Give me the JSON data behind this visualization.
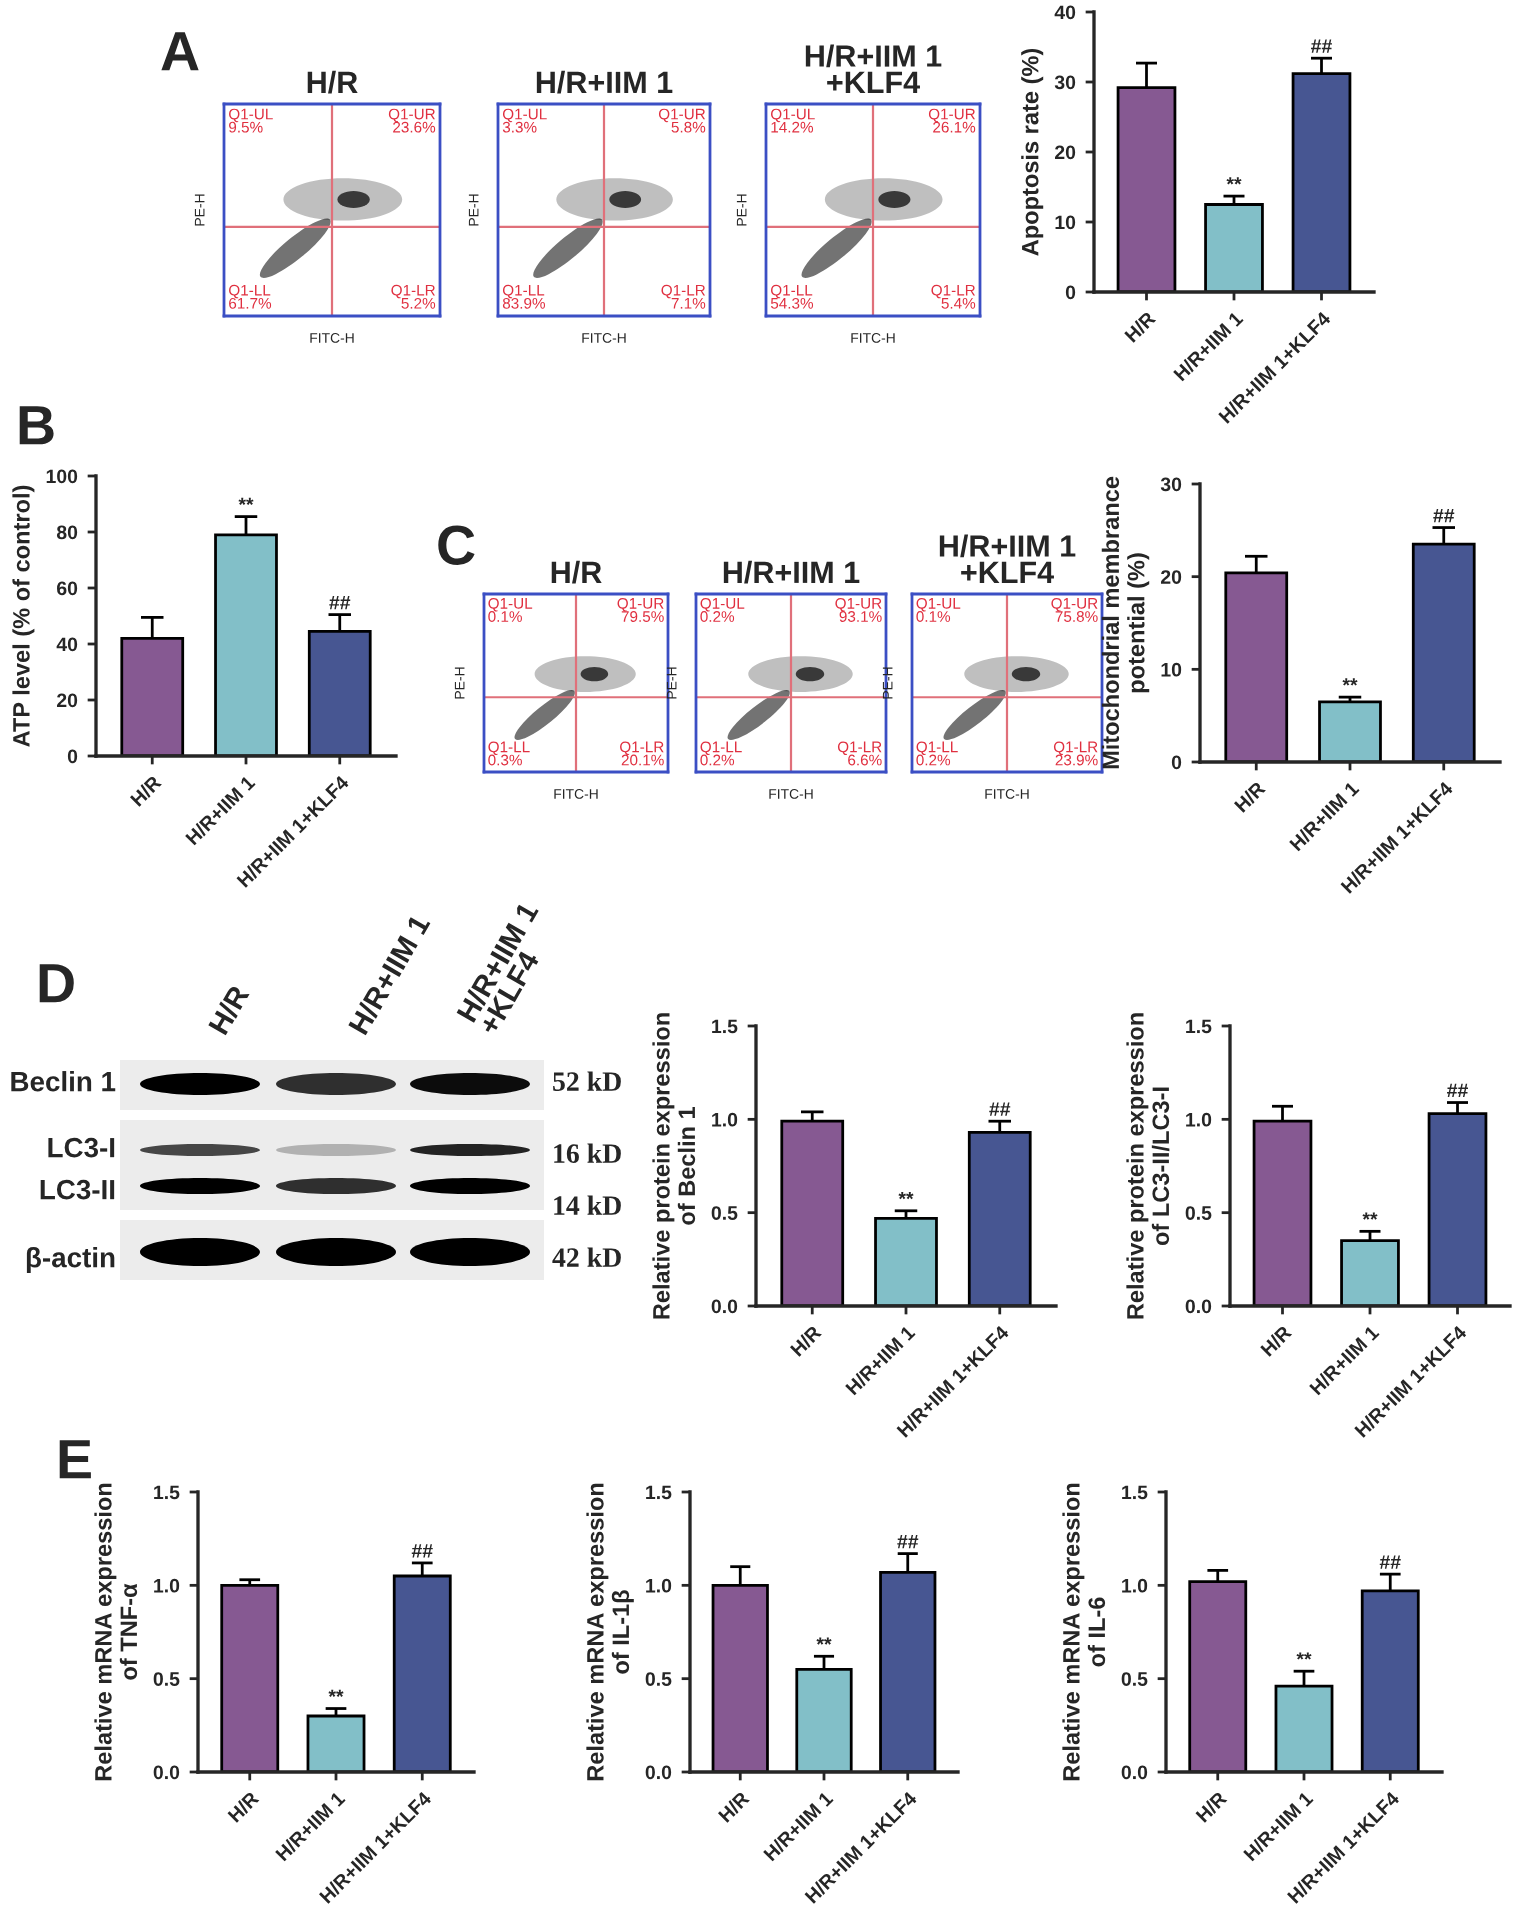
{
  "chart_data": [
    {
      "type": "other",
      "title": "H/R",
      "xlabel": "FITC-H",
      "ylabel": "PE-H",
      "annotations": [
        "A",
        "Q1-UL\n9.5%",
        "Q1-UR\n23.6%",
        "Q1-LL\n61.7%",
        "Q1-LR\n5.2%"
      ]
    },
    {
      "type": "other",
      "title": "H/R+IIM 1",
      "xlabel": "FITC-H",
      "ylabel": "PE-H",
      "annotations": [
        "Q1-UL\n3.3%",
        "Q1-UR\n5.8%",
        "Q1-LL\n83.9%",
        "Q1-LR\n7.1%"
      ]
    },
    {
      "type": "other",
      "title": "H/R+IIM 1\n+KLF4",
      "xlabel": "FITC-H",
      "ylabel": "PE-H",
      "annotations": [
        "Q1-UL\n14.2%",
        "Q1-UR\n26.1%",
        "Q1-LL\n54.3%",
        "Q1-LR\n5.4%"
      ]
    },
    {
      "type": "bar",
      "categories": [
        "H/R",
        "H/R+IIM 1",
        "H/R+IIM 1+KLF4"
      ],
      "values": [
        29.2,
        12.5,
        31.2
      ],
      "errors": [
        [
          29.2,
          32.7
        ],
        [
          12.5,
          13.7
        ],
        [
          31.2,
          33.4
        ]
      ],
      "colors": [
        "#8b4f9c",
        "#77c8d3",
        "#3a4f9f"
      ],
      "ylabel": "Apoptosis rate (%)",
      "ylim": [
        0,
        40
      ],
      "yticks": [
        0,
        10,
        20,
        30,
        40
      ],
      "grid": false,
      "annotations": [
        {
          "text": "**",
          "x": "H/R+IIM 1",
          "y": 12.5
        },
        {
          "text": "##",
          "x": "H/R+IIM 1+KLF4",
          "y": 31.2
        }
      ]
    },
    {
      "type": "bar",
      "categories": [
        "H/R",
        "H/R+IIM 1",
        "H/R+IIM 1+KLF4"
      ],
      "values": [
        42,
        79,
        44.5
      ],
      "errors": [
        [
          42,
          49.5
        ],
        [
          79,
          85.5
        ],
        [
          44.5,
          50.5
        ]
      ],
      "colors": [
        "#8b4f9c",
        "#77c8d3",
        "#3a4f9f"
      ],
      "ylabel": "ATP level (% of control)",
      "ylim": [
        0,
        100
      ],
      "yticks": [
        0,
        20,
        40,
        60,
        80,
        100
      ],
      "grid": false,
      "annotations": [
        "B",
        {
          "text": "**",
          "x": "H/R+IIM 1",
          "y": 79
        },
        {
          "text": "##",
          "x": "H/R+IIM 1+KLF4",
          "y": 44.5
        }
      ]
    },
    {
      "type": "other",
      "title": "H/R",
      "xlabel": "FITC-H",
      "ylabel": "PE-H",
      "annotations": [
        "C",
        "Q1-UL\n0.1%",
        "Q1-UR\n79.5%",
        "Q1-LL\n0.3%",
        "Q1-LR\n20.1%"
      ]
    },
    {
      "type": "other",
      "title": "H/R+IIM 1",
      "xlabel": "FITC-H",
      "ylabel": "PE-H",
      "annotations": [
        "Q1-UL\n0.2%",
        "Q1-UR\n93.1%",
        "Q1-LL\n0.2%",
        "Q1-LR\n6.6%"
      ]
    },
    {
      "type": "other",
      "title": "H/R+IIM 1\n+KLF4",
      "xlabel": "FITC-H",
      "ylabel": "PE-H",
      "annotations": [
        "Q1-UL\n0.1%",
        "Q1-UR\n75.8%",
        "Q1-LL\n0.2%",
        "Q1-LR\n23.9%"
      ]
    },
    {
      "type": "bar",
      "categories": [
        "H/R",
        "H/R+IIM 1",
        "H/R+IIM 1+KLF4"
      ],
      "values": [
        20.4,
        6.5,
        23.5
      ],
      "errors": [
        [
          20.4,
          22.2
        ],
        [
          6.5,
          7.0
        ],
        [
          23.5,
          25.3
        ]
      ],
      "colors": [
        "#8b4f9c",
        "#77c8d3",
        "#3a4f9f"
      ],
      "ylabel": "Mitochondrial membrance\npotential (%)",
      "ylim": [
        0,
        30
      ],
      "yticks": [
        0,
        10,
        20,
        30
      ],
      "grid": false,
      "annotations": [
        {
          "text": "**",
          "x": "H/R+IIM 1",
          "y": 6.5
        },
        {
          "text": "##",
          "x": "H/R+IIM 1+KLF4",
          "y": 23.5
        }
      ]
    },
    {
      "type": "other",
      "annotations": [
        "D",
        "H/R",
        "H/R+IIM 1",
        "H/R+IIM 1\n+KLF4",
        "Beclin 1",
        "LC3-I",
        "LC3-II",
        "β-actin",
        "52 kD",
        "16 kD",
        "14 kD",
        "42 kD"
      ]
    },
    {
      "type": "bar",
      "categories": [
        "H/R",
        "H/R+IIM 1",
        "H/R+IIM 1+KLF4"
      ],
      "values": [
        0.99,
        0.47,
        0.93
      ],
      "errors": [
        [
          0.99,
          1.04
        ],
        [
          0.47,
          0.51
        ],
        [
          0.93,
          0.99
        ]
      ],
      "colors": [
        "#8b4f9c",
        "#77c8d3",
        "#3a4f9f"
      ],
      "ylabel": "Relative protein expression\nof Beclin 1",
      "ylim": [
        0,
        1.5
      ],
      "yticks": [
        {
          "value": 0,
          "label": "0.0"
        },
        {
          "value": 0.5,
          "label": "0.5"
        },
        {
          "value": 1,
          "label": "1.0"
        },
        {
          "value": 1.5,
          "label": "1.5"
        }
      ],
      "grid": false,
      "annotations": [
        {
          "text": "**",
          "x": "H/R+IIM 1",
          "y": 0.47
        },
        {
          "text": "##",
          "x": "H/R+IIM 1+KLF4",
          "y": 0.93
        }
      ]
    },
    {
      "type": "bar",
      "categories": [
        "H/R",
        "H/R+IIM 1",
        "H/R+IIM 1+KLF4"
      ],
      "values": [
        0.99,
        0.35,
        1.03
      ],
      "errors": [
        [
          0.99,
          1.07
        ],
        [
          0.35,
          0.4
        ],
        [
          1.03,
          1.09
        ]
      ],
      "colors": [
        "#8b4f9c",
        "#77c8d3",
        "#3a4f9f"
      ],
      "ylabel": "Relative protein expression\nof LC3-II/LC3-I",
      "ylim": [
        0,
        1.5
      ],
      "yticks": [
        {
          "value": 0,
          "label": "0.0"
        },
        {
          "value": 0.5,
          "label": "0.5"
        },
        {
          "value": 1,
          "label": "1.0"
        },
        {
          "value": 1.5,
          "label": "1.5"
        }
      ],
      "grid": false,
      "annotations": [
        {
          "text": "**",
          "x": "H/R+IIM 1",
          "y": 0.35
        },
        {
          "text": "##",
          "x": "H/R+IIM 1+KLF4",
          "y": 1.03
        }
      ]
    },
    {
      "type": "bar",
      "categories": [
        "H/R",
        "H/R+IIM 1",
        "H/R+IIM 1+KLF4"
      ],
      "values": [
        1.0,
        0.3,
        1.05
      ],
      "errors": [
        [
          1.0,
          1.03
        ],
        [
          0.3,
          0.34
        ],
        [
          1.05,
          1.12
        ]
      ],
      "colors": [
        "#8b4f9c",
        "#77c8d3",
        "#3a4f9f"
      ],
      "ylabel": "Relative mRNA expression\nof TNF-α",
      "ylim": [
        0,
        1.5
      ],
      "yticks": [
        {
          "value": 0,
          "label": "0.0"
        },
        {
          "value": 0.5,
          "label": "0.5"
        },
        {
          "value": 1,
          "label": "1.0"
        },
        {
          "value": 1.5,
          "label": "1.5"
        }
      ],
      "grid": false,
      "annotations": [
        "E",
        {
          "text": "**",
          "x": "H/R+IIM 1",
          "y": 0.3
        },
        {
          "text": "##",
          "x": "H/R+IIM 1+KLF4",
          "y": 1.05
        }
      ]
    },
    {
      "type": "bar",
      "categories": [
        "H/R",
        "H/R+IIM 1",
        "H/R+IIM 1+KLF4"
      ],
      "values": [
        1.0,
        0.55,
        1.07
      ],
      "errors": [
        [
          1.0,
          1.1
        ],
        [
          0.55,
          0.62
        ],
        [
          1.07,
          1.17
        ]
      ],
      "colors": [
        "#8b4f9c",
        "#77c8d3",
        "#3a4f9f"
      ],
      "ylabel": "Relative mRNA expression\nof IL-1β",
      "ylim": [
        0,
        1.5
      ],
      "yticks": [
        {
          "value": 0,
          "label": "0.0"
        },
        {
          "value": 0.5,
          "label": "0.5"
        },
        {
          "value": 1,
          "label": "1.0"
        },
        {
          "value": 1.5,
          "label": "1.5"
        }
      ],
      "grid": false,
      "annotations": [
        {
          "text": "**",
          "x": "H/R+IIM 1",
          "y": 0.55
        },
        {
          "text": "##",
          "x": "H/R+IIM 1+KLF4",
          "y": 1.07
        }
      ]
    },
    {
      "type": "bar",
      "categories": [
        "H/R",
        "H/R+IIM 1",
        "H/R+IIM 1+KLF4"
      ],
      "values": [
        1.02,
        0.46,
        0.97
      ],
      "errors": [
        [
          1.02,
          1.08
        ],
        [
          0.46,
          0.54
        ],
        [
          0.97,
          1.06
        ]
      ],
      "colors": [
        "#8b4f9c",
        "#77c8d3",
        "#3a4f9f"
      ],
      "ylabel": "Relative mRNA expression\nof IL-6",
      "ylim": [
        0,
        1.5
      ],
      "yticks": [
        {
          "value": 0,
          "label": "0.0"
        },
        {
          "value": 0.5,
          "label": "0.5"
        },
        {
          "value": 1,
          "label": "1.0"
        },
        {
          "value": 1.5,
          "label": "1.5"
        }
      ],
      "grid": false,
      "annotations": [
        {
          "text": "**",
          "x": "H/R+IIM 1",
          "y": 0.46
        },
        {
          "text": "##",
          "x": "H/R+IIM 1+KLF4",
          "y": 0.97
        }
      ]
    }
  ]
}
